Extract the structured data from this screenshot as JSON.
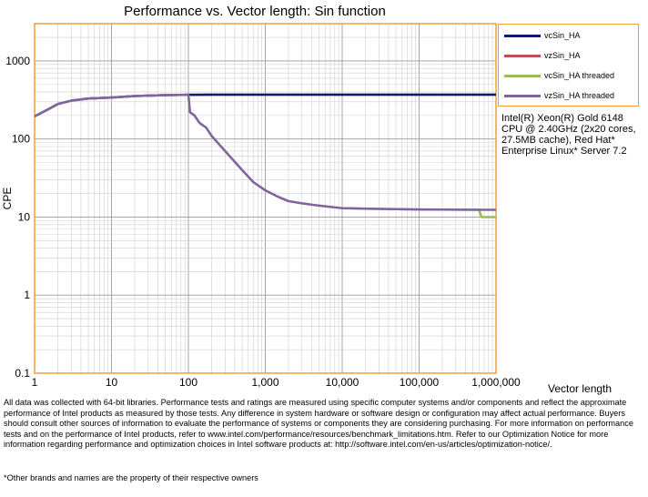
{
  "chart_data": {
    "type": "line",
    "title": "Performance vs. Vector length: Sin function",
    "xlabel": "Vector length",
    "ylabel": "CPE",
    "x_scale": "log",
    "y_scale": "log",
    "xlim": [
      1,
      1000000
    ],
    "ylim": [
      0.1,
      3000
    ],
    "x_ticks": [
      "1",
      "10",
      "100",
      "1,000",
      "10,000",
      "100,000",
      "1,000,000"
    ],
    "y_ticks": [
      "0.1",
      "1",
      "10",
      "100",
      "1000"
    ],
    "grid": true,
    "legend_position": "right",
    "series": [
      {
        "name": "vcSin_HA",
        "color": "#0a1e6e",
        "width": 2.5,
        "points": [
          [
            1,
            195
          ],
          [
            1.5,
            240
          ],
          [
            2,
            280
          ],
          [
            3,
            310
          ],
          [
            5,
            330
          ],
          [
            10,
            340
          ],
          [
            20,
            355
          ],
          [
            50,
            365
          ],
          [
            100,
            368
          ],
          [
            200,
            370
          ],
          [
            1000,
            370
          ],
          [
            10000,
            370
          ],
          [
            100000,
            370
          ],
          [
            1000000,
            370
          ]
        ]
      },
      {
        "name": "vzSin_HA",
        "color": "#c0504d",
        "width": 2.5,
        "points": [
          [
            1,
            195
          ],
          [
            1.5,
            240
          ],
          [
            2,
            280
          ],
          [
            3,
            310
          ],
          [
            5,
            330
          ],
          [
            10,
            340
          ],
          [
            20,
            355
          ],
          [
            50,
            365
          ],
          [
            100,
            368
          ],
          [
            200,
            370
          ],
          [
            1000,
            370
          ],
          [
            10000,
            370
          ],
          [
            100000,
            370
          ],
          [
            1000000,
            370
          ]
        ]
      },
      {
        "name": "vcSin_HA threaded",
        "color": "#9bbb59",
        "width": 2.5,
        "points": [
          [
            1,
            195
          ],
          [
            1.5,
            240
          ],
          [
            2,
            280
          ],
          [
            3,
            310
          ],
          [
            5,
            330
          ],
          [
            10,
            340
          ],
          [
            20,
            355
          ],
          [
            50,
            365
          ],
          [
            100,
            368
          ],
          [
            105,
            220
          ],
          [
            120,
            200
          ],
          [
            140,
            160
          ],
          [
            170,
            140
          ],
          [
            200,
            110
          ],
          [
            300,
            70
          ],
          [
            500,
            40
          ],
          [
            700,
            28
          ],
          [
            1000,
            22
          ],
          [
            1500,
            18
          ],
          [
            2000,
            16
          ],
          [
            3000,
            15
          ],
          [
            5000,
            14
          ],
          [
            10000,
            13
          ],
          [
            20000,
            12.8
          ],
          [
            100000,
            12.5
          ],
          [
            600000,
            12.4
          ],
          [
            650000,
            10
          ],
          [
            1000000,
            10
          ]
        ]
      },
      {
        "name": "vzSin_HA threaded",
        "color": "#8064a2",
        "width": 2.5,
        "points": [
          [
            1,
            195
          ],
          [
            1.5,
            240
          ],
          [
            2,
            280
          ],
          [
            3,
            310
          ],
          [
            5,
            330
          ],
          [
            10,
            340
          ],
          [
            20,
            355
          ],
          [
            50,
            365
          ],
          [
            100,
            368
          ],
          [
            105,
            220
          ],
          [
            120,
            200
          ],
          [
            140,
            160
          ],
          [
            170,
            140
          ],
          [
            200,
            110
          ],
          [
            300,
            70
          ],
          [
            500,
            40
          ],
          [
            700,
            28
          ],
          [
            1000,
            22
          ],
          [
            1500,
            18
          ],
          [
            2000,
            16
          ],
          [
            3000,
            15
          ],
          [
            5000,
            14
          ],
          [
            10000,
            13
          ],
          [
            20000,
            12.8
          ],
          [
            100000,
            12.5
          ],
          [
            1000000,
            12.4
          ]
        ]
      }
    ]
  },
  "cpu_note": "Intel(R) Xeon(R) Gold 6148 CPU @ 2.40GHz (2x20 cores, 27.5MB cache), Red Hat* Enterprise Linux* Server 7.2",
  "disclaimer": "All data was collected with 64-bit libraries. Performance tests and ratings are measured using specific computer systems and/or components and reflect the approximate performance of Intel products as measured by those tests. Any difference in system hardware or software design or configuration may affect actual performance. Buyers should consult other sources of information to evaluate the performance of systems or components they are considering purchasing. For more information on performance tests and on the performance of Intel products, refer to www.intel.com/performance/resources/benchmark_limitations.htm. Refer to our Optimization Notice for more information regarding performance and optimization choices in Intel software products at: http://software.intel.com/en-us/articles/optimization-notice/.",
  "trademark": "*Other brands and names are the property of their respective owners"
}
